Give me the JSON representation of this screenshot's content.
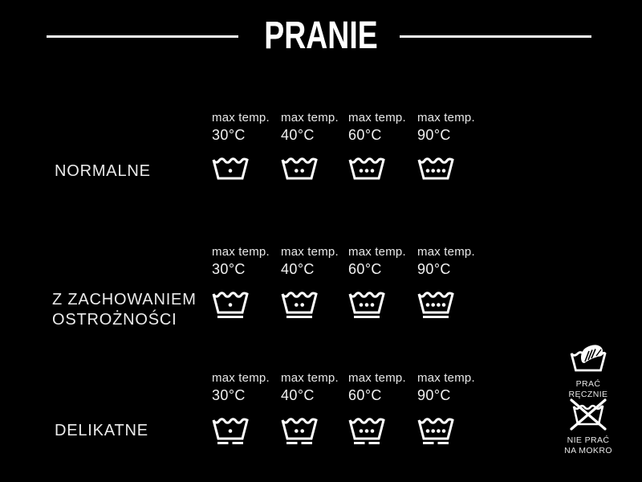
{
  "title": "PRANIE",
  "colors": {
    "background": "#000000",
    "foreground": "#ffffff"
  },
  "temps": [
    {
      "label": "max temp.",
      "value": "30°C",
      "dots": 1
    },
    {
      "label": "max temp.",
      "value": "40°C",
      "dots": 2
    },
    {
      "label": "max temp.",
      "value": "60°C",
      "dots": 3
    },
    {
      "label": "max temp.",
      "value": "90°C",
      "dots": 4
    }
  ],
  "rows": [
    {
      "id": "normalne",
      "label_lines": [
        "NORMALNE"
      ],
      "underline": "none"
    },
    {
      "id": "z-zachowaniem-ostroznosci",
      "label_lines": [
        "Z ZACHOWANIEM",
        "OSTROŻNOŚCI"
      ],
      "underline": "single"
    },
    {
      "id": "delikatne",
      "label_lines": [
        "DELIKATNE"
      ],
      "underline": "double"
    }
  ],
  "side_symbols": [
    {
      "id": "hand-wash",
      "label_lines": [
        "PRAĆ RĘCZNIE"
      ]
    },
    {
      "id": "no-wet-wash",
      "label_lines": [
        "NIE PRAĆ",
        "NA MOKRO"
      ]
    }
  ]
}
